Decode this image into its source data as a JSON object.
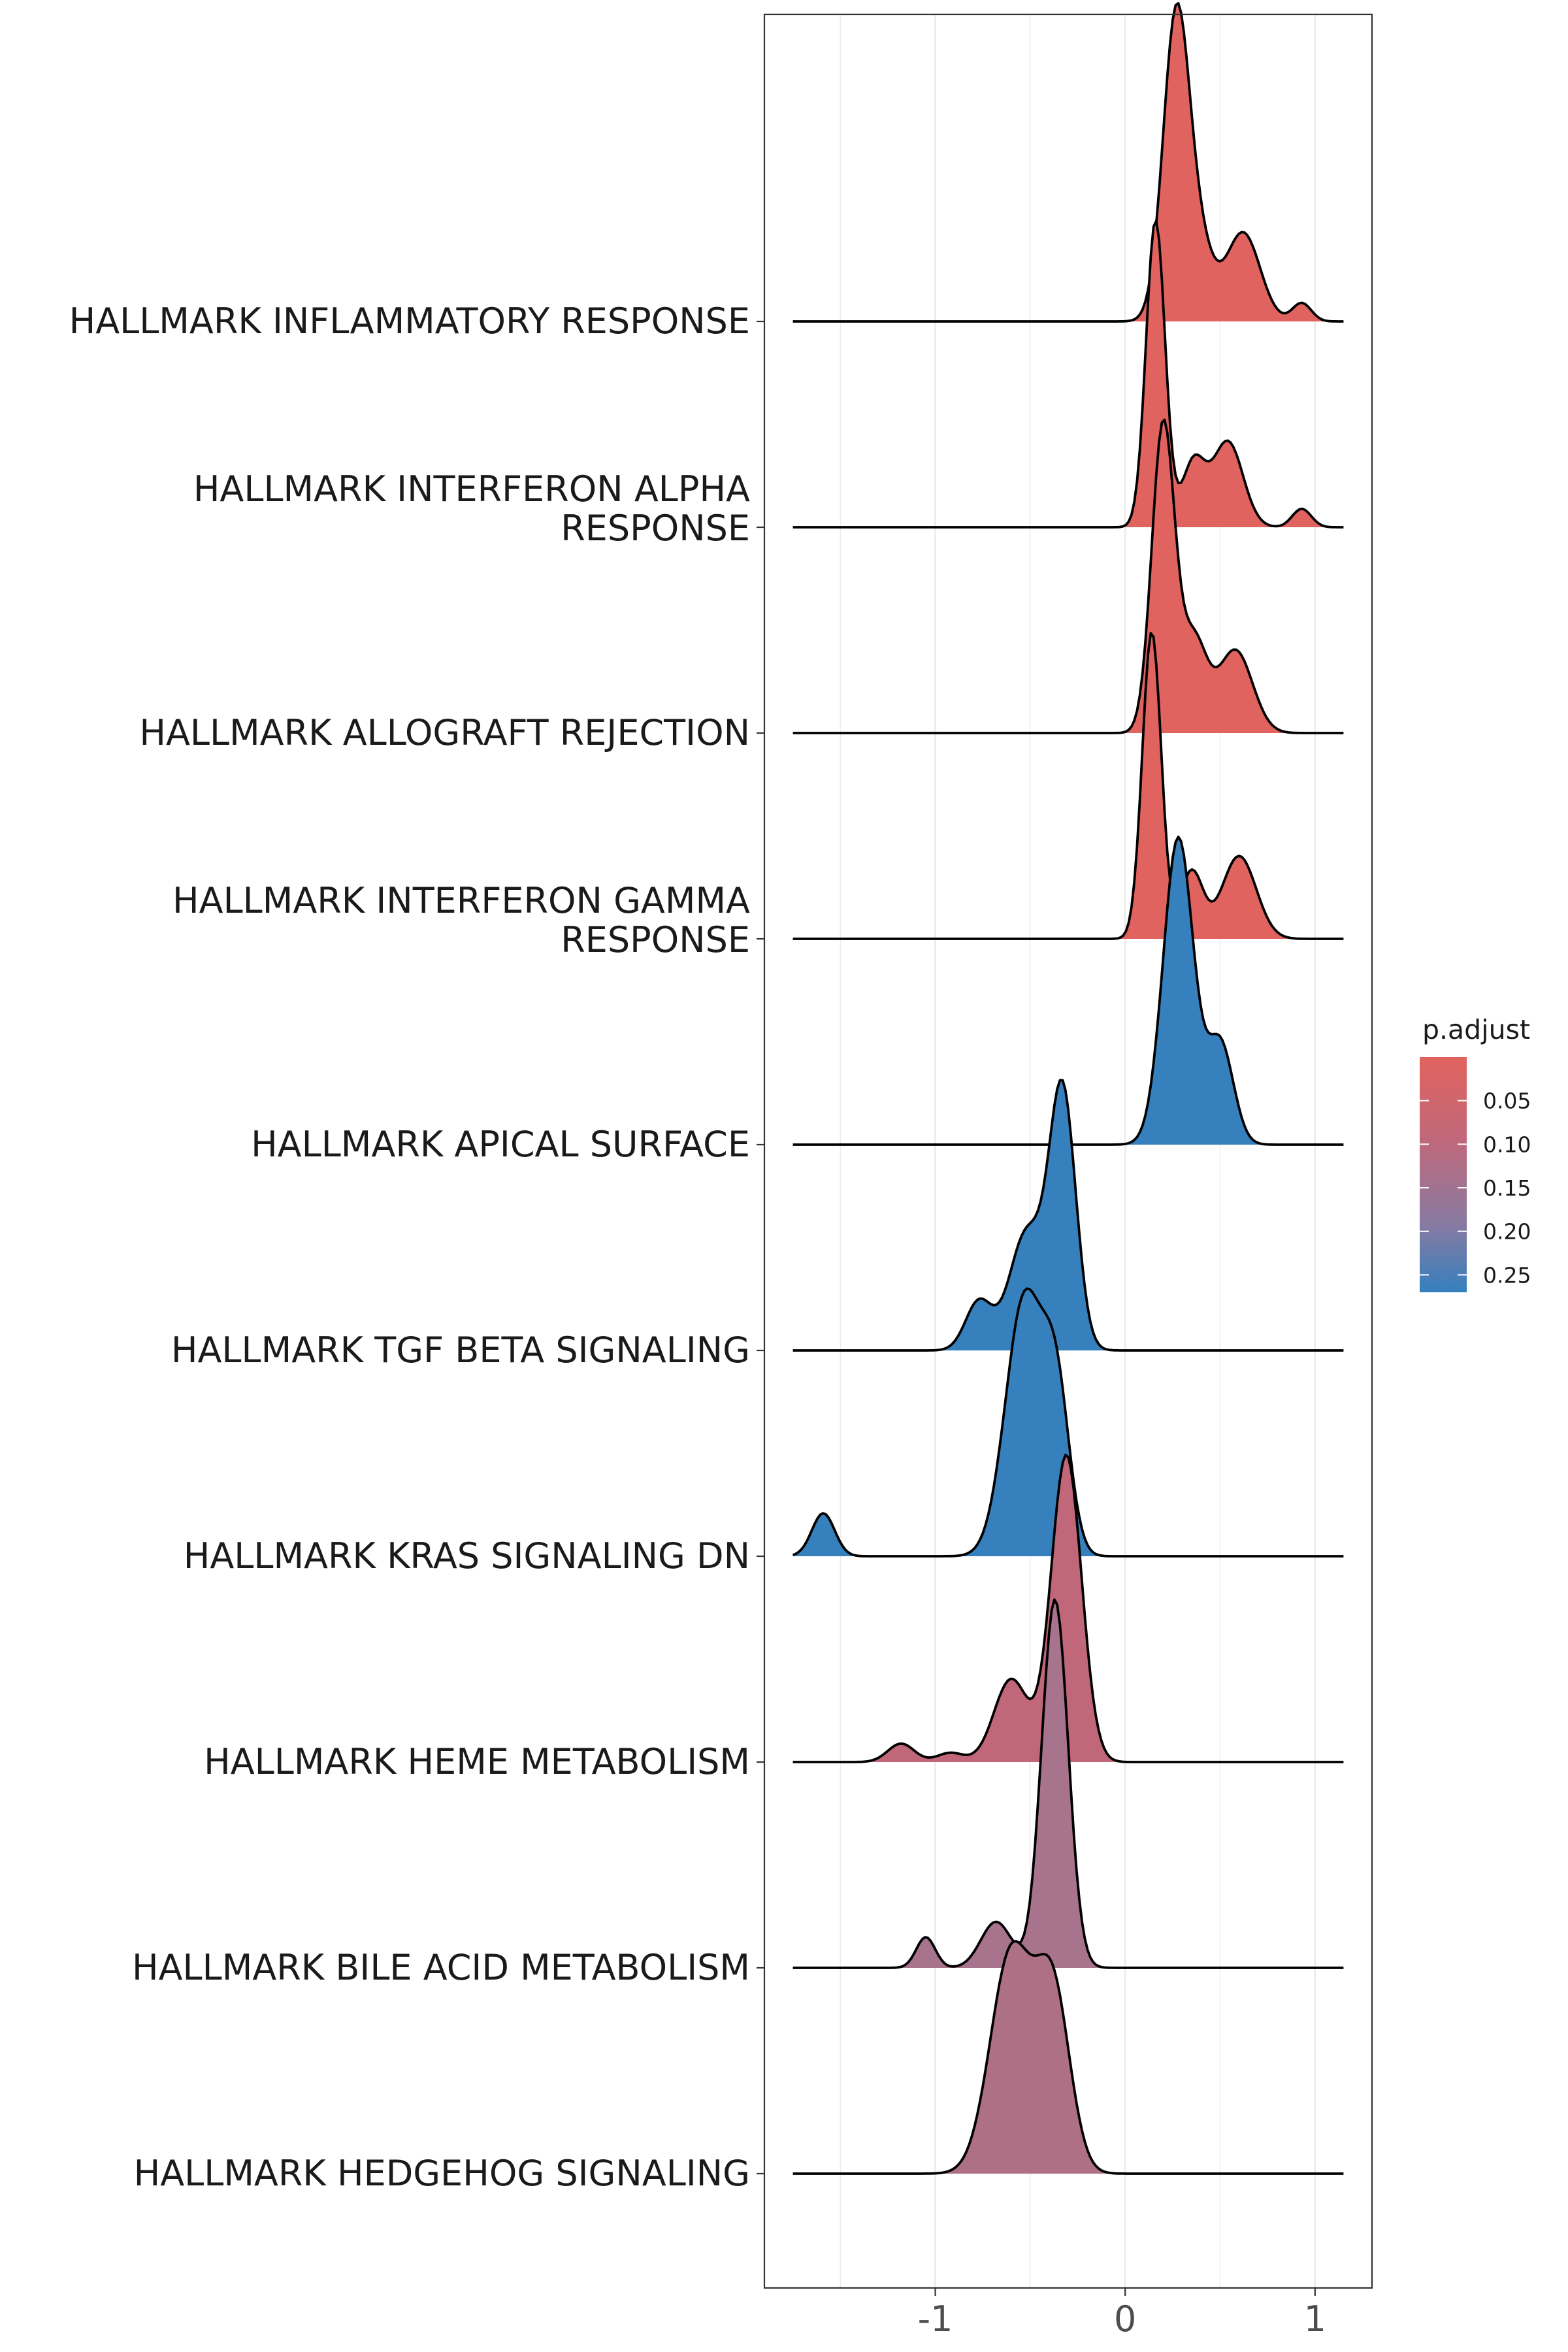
{
  "chart_data": {
    "type": "ridgeline",
    "title": "",
    "xlabel": "",
    "ylabel": "",
    "xlim": [
      -1.9,
      1.3
    ],
    "x_ticks": [
      -1,
      0,
      1
    ],
    "x_tick_labels": [
      "-1",
      "0",
      "1"
    ],
    "grid": true,
    "legend": {
      "title": "p.adjust",
      "position": "right",
      "ticks": [
        0.05,
        0.1,
        0.15,
        0.2,
        0.25
      ],
      "tick_labels": [
        "0.05",
        "0.10",
        "0.15",
        "0.20",
        "0.25"
      ],
      "range": [
        0.0,
        0.27
      ],
      "low_color": "#E1635F",
      "high_color": "#3580BD"
    },
    "series": [
      {
        "name": "HALLMARK INFLAMMATORY RESPONSE",
        "label_lines": [
          "HALLMARK INFLAMMATORY RESPONSE"
        ],
        "p_adjust": 0.01,
        "fill": "#E1635F",
        "components": [
          [
            0.27,
            0.07,
            1.0
          ],
          [
            0.4,
            0.07,
            0.2
          ],
          [
            0.62,
            0.09,
            0.29
          ],
          [
            0.93,
            0.05,
            0.06
          ]
        ]
      },
      {
        "name": "HALLMARK INTERFERON ALPHA RESPONSE",
        "label_lines": [
          "HALLMARK INTERFERON ALPHA",
          "RESPONSE"
        ],
        "p_adjust": 0.01,
        "fill": "#E1635F",
        "components": [
          [
            0.16,
            0.05,
            1.0
          ],
          [
            0.36,
            0.06,
            0.21
          ],
          [
            0.54,
            0.08,
            0.28
          ],
          [
            0.93,
            0.05,
            0.06
          ]
        ]
      },
      {
        "name": "HALLMARK ALLOGRAFT REJECTION",
        "label_lines": [
          "HALLMARK ALLOGRAFT REJECTION"
        ],
        "p_adjust": 0.01,
        "fill": "#E1635F",
        "components": [
          [
            0.2,
            0.06,
            1.0
          ],
          [
            0.36,
            0.07,
            0.3
          ],
          [
            0.58,
            0.09,
            0.27
          ]
        ]
      },
      {
        "name": "HALLMARK INTERFERON GAMMA RESPONSE",
        "label_lines": [
          "HALLMARK INTERFERON GAMMA",
          "RESPONSE"
        ],
        "p_adjust": 0.01,
        "fill": "#E1635F",
        "components": [
          [
            0.14,
            0.05,
            1.0
          ],
          [
            0.35,
            0.06,
            0.22
          ],
          [
            0.6,
            0.09,
            0.27
          ]
        ]
      },
      {
        "name": "HALLMARK APICAL SURFACE",
        "label_lines": [
          "HALLMARK APICAL SURFACE"
        ],
        "p_adjust": 0.27,
        "fill": "#3580BD",
        "components": [
          [
            0.28,
            0.08,
            1.0
          ],
          [
            0.5,
            0.07,
            0.33
          ]
        ]
      },
      {
        "name": "HALLMARK TGF BETA SIGNALING",
        "label_lines": [
          "HALLMARK TGF BETA SIGNALING"
        ],
        "p_adjust": 0.27,
        "fill": "#3580BD",
        "components": [
          [
            -0.33,
            0.07,
            0.84
          ],
          [
            -0.52,
            0.09,
            0.38
          ],
          [
            -0.77,
            0.07,
            0.16
          ]
        ]
      },
      {
        "name": "HALLMARK KRAS SIGNALING DN",
        "label_lines": [
          "HALLMARK KRAS SIGNALING DN"
        ],
        "p_adjust": 0.27,
        "fill": "#3580BD",
        "components": [
          [
            -0.53,
            0.1,
            0.84
          ],
          [
            -0.36,
            0.07,
            0.48
          ],
          [
            -1.59,
            0.06,
            0.14
          ]
        ]
      },
      {
        "name": "HALLMARK HEME METABOLISM",
        "label_lines": [
          "HALLMARK HEME METABOLISM"
        ],
        "p_adjust": 0.1,
        "fill": "#C0687A",
        "components": [
          [
            -0.31,
            0.08,
            1.0
          ],
          [
            -0.6,
            0.09,
            0.27
          ],
          [
            -1.18,
            0.07,
            0.06
          ],
          [
            -0.92,
            0.07,
            0.03
          ]
        ]
      },
      {
        "name": "HALLMARK BILE ACID METABOLISM",
        "label_lines": [
          "HALLMARK BILE ACID METABOLISM"
        ],
        "p_adjust": 0.12,
        "fill": "#A8738D",
        "components": [
          [
            -0.37,
            0.07,
            1.2
          ],
          [
            -0.68,
            0.08,
            0.15
          ],
          [
            -1.05,
            0.05,
            0.1
          ]
        ]
      },
      {
        "name": "HALLMARK HEDGEHOG SIGNALING",
        "label_lines": [
          "HALLMARK HEDGEHOG SIGNALING"
        ],
        "p_adjust": 0.11,
        "fill": "#AE7084",
        "components": [
          [
            -0.6,
            0.11,
            0.72
          ],
          [
            -0.38,
            0.09,
            0.58
          ]
        ]
      }
    ]
  }
}
